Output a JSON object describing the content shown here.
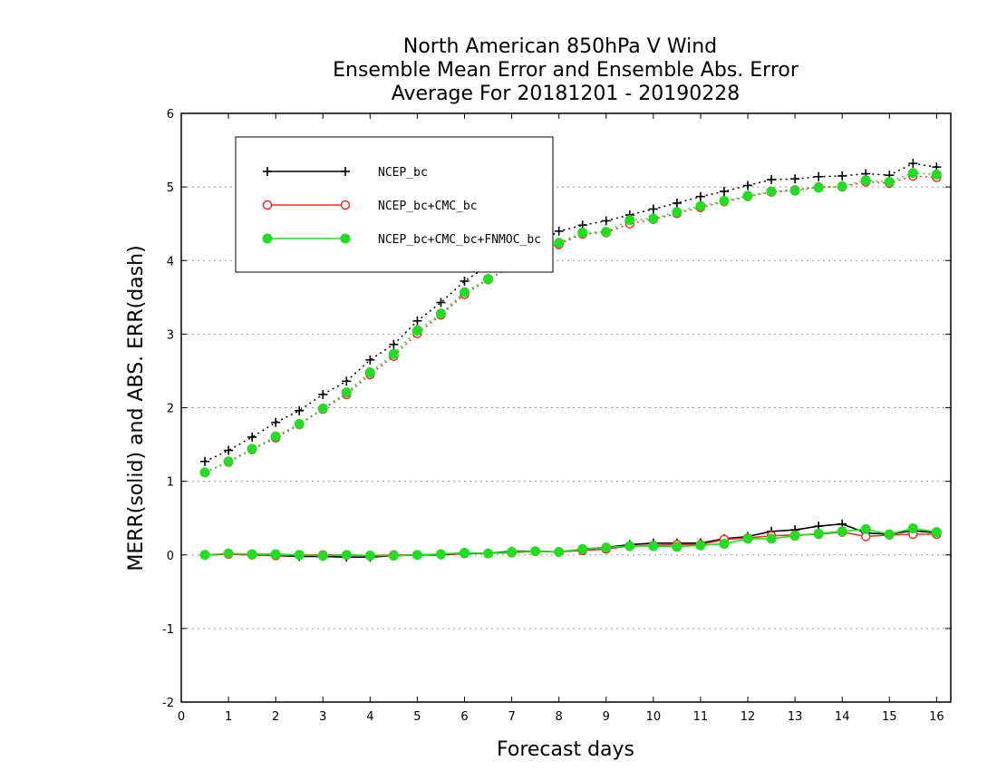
{
  "chart_data": {
    "type": "line",
    "title": "North American 850hPa V Wind",
    "subtitle_lines": [
      "Ensemble Mean Error and Ensemble Abs. Error",
      "Average For 20181201 - 20190228"
    ],
    "xlabel": "Forecast days",
    "ylabel": "MERR(solid) and ABS. ERR(dash)",
    "xlim": [
      0,
      16.3
    ],
    "ylim": [
      -2,
      6
    ],
    "x_ticks": [
      "0",
      "1",
      "2",
      "3",
      "4",
      "5",
      "6",
      "7",
      "8",
      "9",
      "10",
      "11",
      "12",
      "13",
      "14",
      "15",
      "16"
    ],
    "y_ticks": [
      "-2",
      "-1",
      "0",
      "1",
      "2",
      "3",
      "4",
      "5",
      "6"
    ],
    "grid": "horizontal dotted",
    "legend_position": "top-left",
    "x": [
      0.5,
      1,
      1.5,
      2,
      2.5,
      3,
      3.5,
      4,
      4.5,
      5,
      5.5,
      6,
      6.5,
      7,
      7.5,
      8,
      8.5,
      9,
      9.5,
      10,
      10.5,
      11,
      11.5,
      12,
      12.5,
      13,
      13.5,
      14,
      14.5,
      15,
      15.5,
      16
    ],
    "series": [
      {
        "name": "NCEP_bc",
        "color": "#000000",
        "marker": "plus",
        "merr": [
          0,
          0.01,
          0,
          -0.01,
          -0.02,
          -0.02,
          -0.03,
          -0.03,
          -0.01,
          0,
          0,
          0.02,
          0.02,
          0.05,
          0.05,
          0.04,
          0.08,
          0.1,
          0.14,
          0.16,
          0.16,
          0.16,
          0.22,
          0.25,
          0.32,
          0.34,
          0.39,
          0.42,
          0.3,
          0.28,
          0.33,
          0.3
        ],
        "abs_err": [
          1.27,
          1.42,
          1.6,
          1.8,
          1.96,
          2.18,
          2.36,
          2.65,
          2.86,
          3.18,
          3.43,
          3.72,
          3.93,
          4.1,
          4.22,
          4.4,
          4.48,
          4.54,
          4.62,
          4.7,
          4.78,
          4.87,
          4.94,
          5.02,
          5.1,
          5.11,
          5.14,
          5.15,
          5.18,
          5.16,
          5.32,
          5.27
        ]
      },
      {
        "name": "NCEP_bc+CMC_bc",
        "color": "#e83030",
        "marker": "open-circle",
        "merr": [
          0,
          0.01,
          0,
          -0.01,
          0,
          0,
          0,
          -0.01,
          0,
          0,
          0.01,
          0.02,
          0.02,
          0.03,
          0.05,
          0.04,
          0.06,
          0.08,
          0.12,
          0.13,
          0.14,
          0.14,
          0.21,
          0.23,
          0.26,
          0.27,
          0.28,
          0.31,
          0.25,
          0.27,
          0.28,
          0.28
        ],
        "abs_err": [
          1.12,
          1.26,
          1.43,
          1.59,
          1.77,
          1.98,
          2.18,
          2.45,
          2.7,
          3.01,
          3.26,
          3.54,
          3.74,
          3.92,
          4.08,
          4.22,
          4.36,
          4.38,
          4.5,
          4.56,
          4.64,
          4.72,
          4.8,
          4.87,
          4.93,
          4.96,
          5,
          5,
          5.07,
          5.05,
          5.15,
          5.13
        ]
      },
      {
        "name": "NCEP_bc+CMC_bc+FNMOC_bc",
        "color": "#22dd22",
        "marker": "filled-circle",
        "merr": [
          0,
          0.02,
          0.01,
          0.01,
          0,
          -0.01,
          0,
          -0.01,
          -0.01,
          0,
          0.01,
          0.03,
          0.02,
          0.04,
          0.05,
          0.04,
          0.08,
          0.1,
          0.12,
          0.12,
          0.11,
          0.13,
          0.15,
          0.22,
          0.22,
          0.26,
          0.29,
          0.32,
          0.35,
          0.28,
          0.36,
          0.31
        ],
        "abs_err": [
          1.12,
          1.27,
          1.44,
          1.61,
          1.78,
          1.99,
          2.21,
          2.48,
          2.73,
          3.05,
          3.28,
          3.57,
          3.75,
          3.93,
          4.1,
          4.24,
          4.38,
          4.39,
          4.55,
          4.57,
          4.66,
          4.74,
          4.81,
          4.88,
          4.94,
          4.95,
          4.99,
          5.01,
          5.09,
          5.07,
          5.19,
          5.17
        ]
      }
    ]
  }
}
